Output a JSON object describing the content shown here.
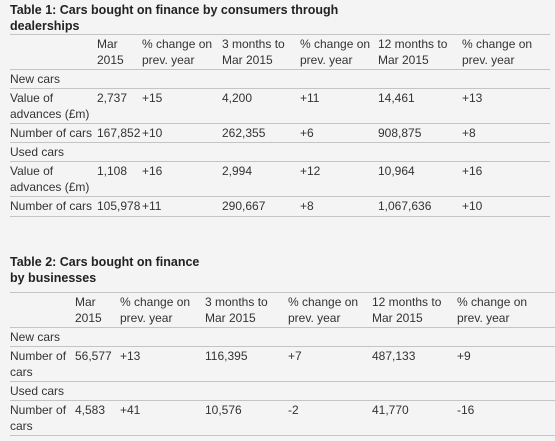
{
  "tables": [
    {
      "title": "Table 1: Cars bought on finance by consumers through dealerships",
      "header": [
        "Mar 2015",
        "% change on prev. year",
        "3 months to Mar 2015",
        "% change on prev. year",
        "12 months to Mar 2015",
        "% change on prev. year"
      ],
      "rows": [
        {
          "section": "New cars"
        },
        {
          "label": "Value of advances (£m)",
          "cells": [
            "2,737",
            "+15",
            "4,200",
            "+11",
            "14,461",
            "+13"
          ]
        },
        {
          "label": "Number of cars",
          "cells": [
            "167,852",
            "+10",
            "262,355",
            "+6",
            "908,875",
            "+8"
          ]
        },
        {
          "section": "Used cars"
        },
        {
          "label": "Value of advances (£m)",
          "cells": [
            "1,108",
            "+16",
            "2,994",
            "+12",
            "10,964",
            "+16"
          ]
        },
        {
          "label": "Number of cars",
          "cells": [
            "105,978",
            "+11",
            "290,667",
            "+8",
            "1,067,636",
            "+10"
          ]
        }
      ]
    },
    {
      "title": "Table 2: Cars bought on finance by businesses",
      "header": [
        "Mar 2015",
        "% change on prev. year",
        "3 months to Mar 2015",
        "% change on prev. year",
        "12 months to Mar 2015",
        "% change on prev. year"
      ],
      "rows": [
        {
          "section": "New cars"
        },
        {
          "label": "Number of cars",
          "cells": [
            "56,577",
            "+13",
            "116,395",
            "+7",
            "487,133",
            "+9"
          ]
        },
        {
          "section": "Used cars"
        },
        {
          "label": "Number of cars",
          "cells": [
            "4,583",
            "+41",
            "10,576",
            "-2",
            "41,770",
            "-16"
          ]
        }
      ]
    }
  ]
}
